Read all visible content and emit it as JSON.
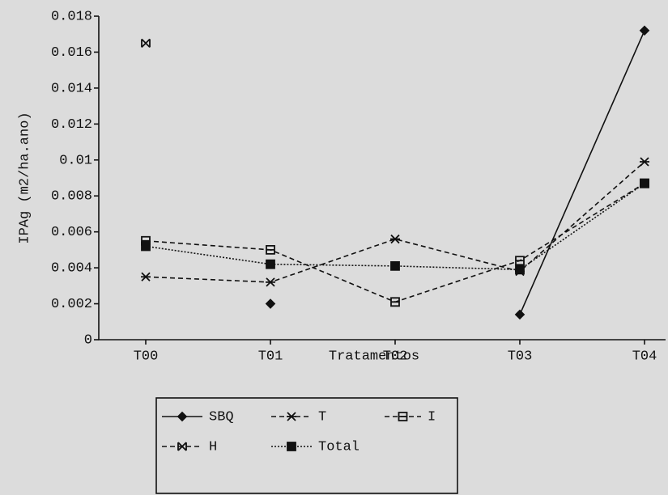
{
  "chart_data": {
    "type": "line",
    "x_label": "Tratamentos",
    "y_label": "IPAg (m2/ha.ano)",
    "categories": [
      "T00",
      "T01",
      "T02",
      "T03",
      "T04"
    ],
    "ylim": [
      0,
      0.018
    ],
    "yticks": [
      0,
      0.002,
      0.004,
      0.006,
      0.008,
      0.01,
      0.012,
      0.014,
      0.016,
      0.018
    ],
    "series": [
      {
        "name": "SBQ",
        "color": "#111111",
        "dash": "solid",
        "marker": "diamond",
        "values": [
          null,
          0.002,
          null,
          0.0014,
          0.0172
        ]
      },
      {
        "name": "T",
        "color": "#111111",
        "dash": "dashed",
        "marker": "asterisk",
        "values": [
          0.0035,
          0.0032,
          0.0056,
          0.0038,
          0.0099
        ]
      },
      {
        "name": "I",
        "color": "#111111",
        "dash": "dashed",
        "marker": "square",
        "values": [
          0.0055,
          0.005,
          0.0021,
          0.0044,
          0.0087
        ]
      },
      {
        "name": "H",
        "color": "#111111",
        "dash": "dashed",
        "marker": "x",
        "values": [
          0.0165,
          null,
          null,
          null,
          null
        ]
      },
      {
        "name": "Total",
        "color": "#111111",
        "dash": "dotted",
        "marker": "filled-square",
        "values": [
          0.0052,
          0.0042,
          0.0041,
          0.0039,
          0.0087
        ]
      }
    ]
  }
}
